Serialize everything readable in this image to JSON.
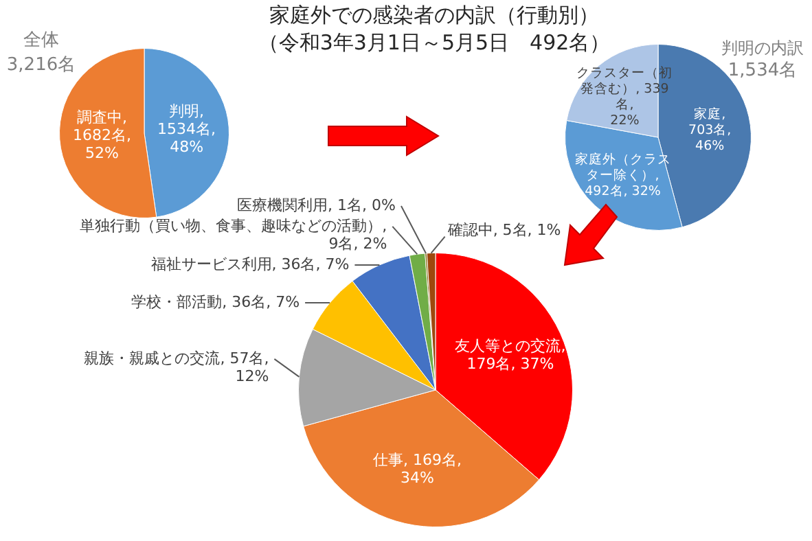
{
  "chart_data": [
    {
      "type": "pie",
      "title": "全体",
      "subtitle": "3,216名",
      "categories": [
        "判明",
        "調査中"
      ],
      "values": [
        1534,
        1682
      ],
      "colors": [
        "#5b9bd5",
        "#ed7d31"
      ],
      "value_labels": [
        ",\n1534名,\n48%",
        ",\n1682名,\n52%"
      ]
    },
    {
      "type": "pie",
      "title": "判明の内訳",
      "subtitle": "1,534名",
      "categories": [
        "家庭",
        "家庭外（クラスター除く）",
        "クラスター（初発含む）"
      ],
      "values": [
        703,
        492,
        339
      ],
      "colors": [
        "#4a7ab0",
        "#5b9bd5",
        "#adc5e6"
      ],
      "value_labels": [
        ",\n703名,\n46%",
        ",\n492名, 32%",
        ", 339名,\n22%"
      ]
    },
    {
      "type": "pie",
      "title": "家庭外での感染者の内訳（行動別）",
      "subtitle": "（令和3年3月1日～5月5日　492名）",
      "categories": [
        "友人等との交流",
        "仕事",
        "親族・親戚との交流",
        "学校・部活動",
        "福祉サービス利用",
        "単独行動（買い物、食事、趣味などの活動）",
        "医療機関利用",
        "確認中"
      ],
      "values": [
        179,
        169,
        57,
        36,
        36,
        9,
        1,
        5
      ],
      "colors": [
        "#ff0000",
        "#ed7d31",
        "#a5a5a5",
        "#ffc000",
        "#4472c4",
        "#70ad47",
        "#7f6000",
        "#9e480e"
      ],
      "value_labels": [
        ",\n179名, 37%",
        ", 169名,\n34%",
        ", 57名,\n12%",
        ", 36名, 7%",
        ", 36名, 7%",
        ",\n9名, 2%",
        ", 1名, 0%",
        ", 5名, 1%"
      ]
    }
  ]
}
